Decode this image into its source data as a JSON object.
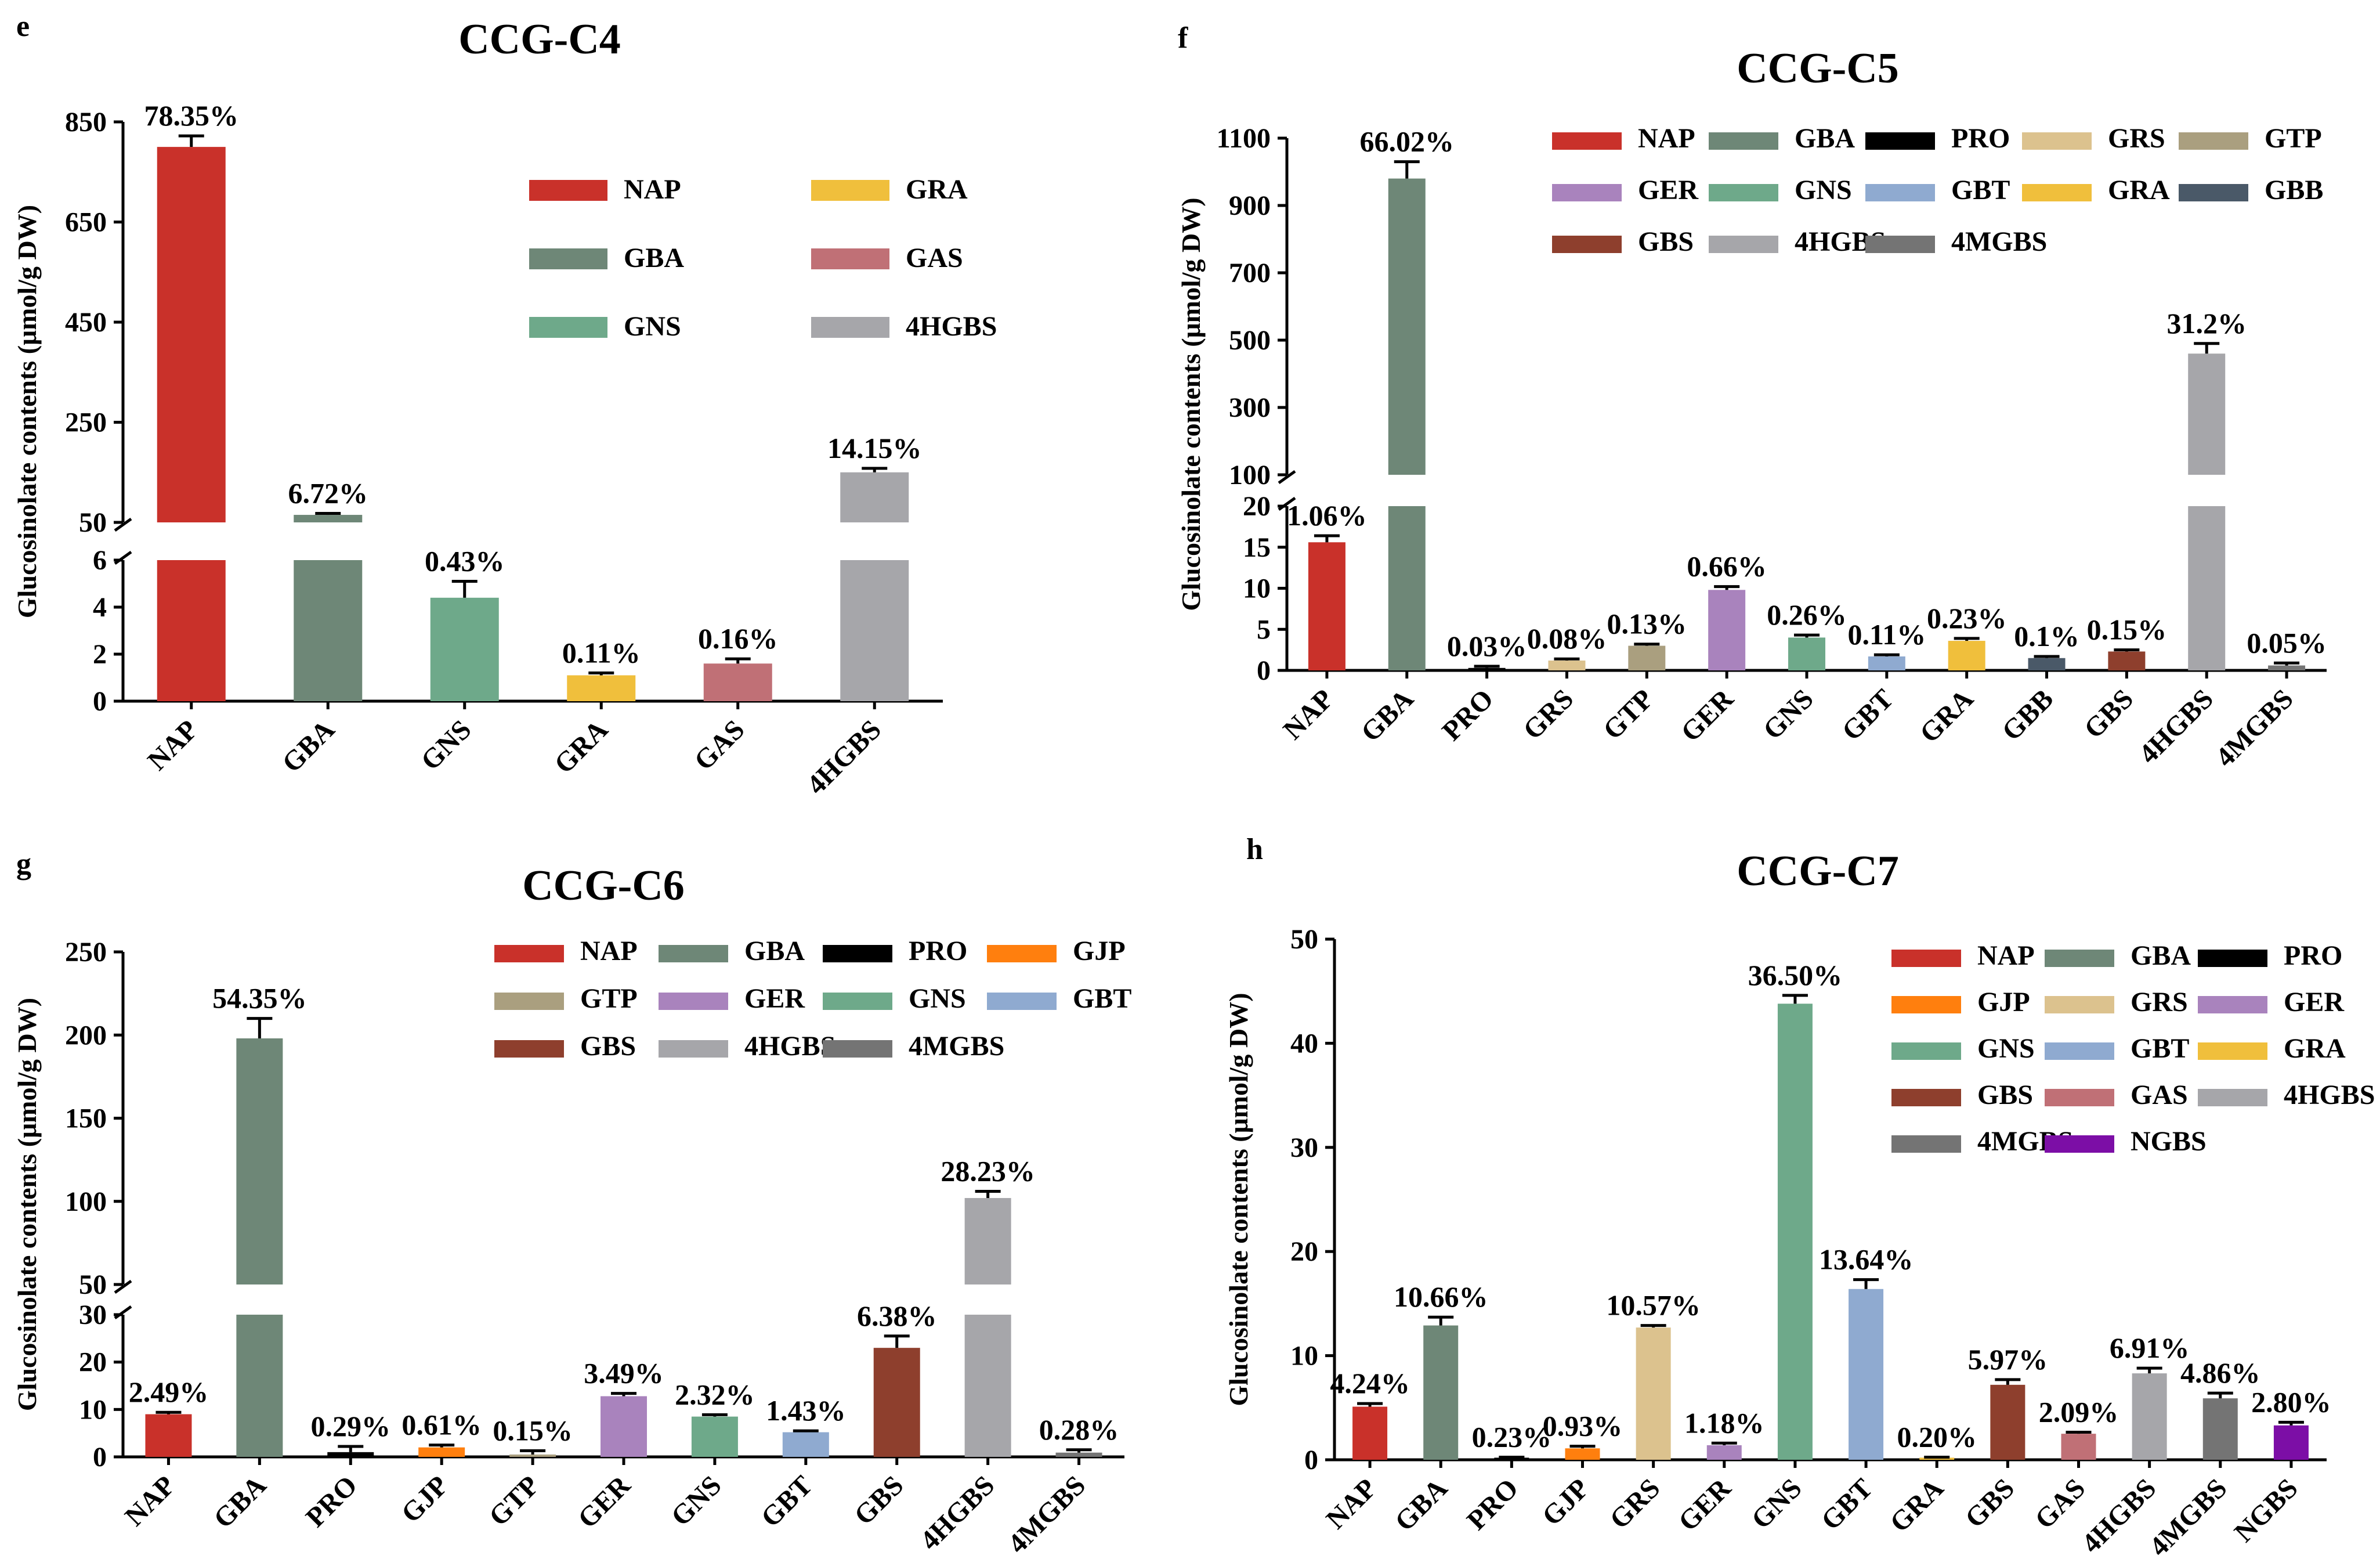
{
  "figure": {
    "colors": {
      "NAP": "#c9312a",
      "GBA": "#6e8777",
      "PRO": "#000000",
      "GJP": "#ff7f0e",
      "GRS": "#dcc28e",
      "GTP": "#aa9f7f",
      "GER": "#a983bd",
      "GNS": "#6ea98a",
      "GBT": "#8faad0",
      "GRA": "#f0bf3c",
      "GBB": "#4a5968",
      "GBS": "#8e3f2d",
      "GAS": "#c07076",
      "4HGBS": "#a6a6aa",
      "4MGBS": "#747474",
      "NGBS": "#7c0ea6"
    }
  },
  "chart_data": [
    {
      "panel_label": "e",
      "type": "bar",
      "title": "CCG-C4",
      "ylabel": "Glucosinolate contents (μmol/g DW)",
      "categories": [
        "NAP",
        "GBA",
        "GNS",
        "GRA",
        "GAS",
        "4HGBS"
      ],
      "values": [
        800,
        65,
        4.4,
        1.1,
        1.6,
        150
      ],
      "errors": [
        22,
        3,
        0.7,
        0.1,
        0.2,
        8
      ],
      "labels": [
        "78.35%",
        "6.72%",
        "0.43%",
        "0.11%",
        "0.16%",
        "14.15%"
      ],
      "y_axis_break": {
        "lower_range": [
          0,
          6
        ],
        "upper_range": [
          50,
          850
        ]
      },
      "yticks_lower": [
        "0",
        "2",
        "4",
        "6"
      ],
      "yticks_upper": [
        "50",
        "250",
        "450",
        "650",
        "850"
      ],
      "legend": [
        "NAP",
        "GRA",
        "GBA",
        "GAS",
        "GNS",
        "4HGBS"
      ],
      "legend_placement": "top-right"
    },
    {
      "panel_label": "f",
      "type": "bar",
      "title": "CCG-C5",
      "ylabel": "Glucosinolate contents (μmol/g DW)",
      "categories": [
        "NAP",
        "GBA",
        "PRO",
        "GRS",
        "GTP",
        "GER",
        "GNS",
        "GBT",
        "GRA",
        "GBB",
        "GBS",
        "4HGBS",
        "4MGBS"
      ],
      "values": [
        15.6,
        980,
        0.3,
        1.2,
        3.0,
        9.8,
        4.0,
        1.7,
        3.6,
        1.5,
        2.3,
        460,
        0.6
      ],
      "errors": [
        0.8,
        50,
        0.2,
        0.2,
        0.2,
        0.4,
        0.3,
        0.2,
        0.3,
        0.2,
        0.2,
        30,
        0.3
      ],
      "labels": [
        "1.06%",
        "66.02%",
        "0.03%",
        "0.08%",
        "0.13%",
        "0.66%",
        "0.26%",
        "0.11%",
        "0.23%",
        "0.1%",
        "0.15%",
        "31.2%",
        "0.05%"
      ],
      "y_axis_break": {
        "lower_range": [
          0,
          20
        ],
        "upper_range": [
          100,
          1100
        ]
      },
      "yticks_lower": [
        "0",
        "5",
        "10",
        "15",
        "20"
      ],
      "yticks_upper": [
        "100",
        "300",
        "500",
        "700",
        "900",
        "1100"
      ],
      "legend": [
        "NAP",
        "GBA",
        "PRO",
        "GRS",
        "GTP",
        "GER",
        "GNS",
        "GBT",
        "GRA",
        "GBB",
        "GBS",
        "4HGBS",
        "4MGBS"
      ],
      "legend_placement": "top-right"
    },
    {
      "panel_label": "g",
      "type": "bar",
      "title": "CCG-C6",
      "ylabel": "Glucosinolate contents (μmol/g DW)",
      "categories": [
        "NAP",
        "GBA",
        "PRO",
        "GJP",
        "GTP",
        "GER",
        "GNS",
        "GBT",
        "GBS",
        "4HGBS",
        "4MGBS"
      ],
      "values": [
        9,
        198,
        1.0,
        2.0,
        0.5,
        12.8,
        8.5,
        5.2,
        23,
        102,
        0.9
      ],
      "errors": [
        0.4,
        12,
        1.2,
        0.5,
        0.8,
        0.6,
        0.4,
        0.3,
        2.5,
        4,
        0.6
      ],
      "labels": [
        "2.49%",
        "54.35%",
        "0.29%",
        "0.61%",
        "0.15%",
        "3.49%",
        "2.32%",
        "1.43%",
        "6.38%",
        "28.23%",
        "0.28%"
      ],
      "y_axis_break": {
        "lower_range": [
          0,
          30
        ],
        "upper_range": [
          50,
          250
        ]
      },
      "yticks_lower": [
        "0",
        "10",
        "20",
        "30"
      ],
      "yticks_upper": [
        "50",
        "100",
        "150",
        "200",
        "250"
      ],
      "legend": [
        "NAP",
        "GBA",
        "PRO",
        "GJP",
        "GTP",
        "GER",
        "GNS",
        "GBT",
        "GBS",
        "4HGBS",
        "4MGBS"
      ],
      "legend_placement": "top-right"
    },
    {
      "panel_label": "h",
      "type": "bar",
      "title": "CCG-C7",
      "ylabel": "Glucosinolate contents (μmol/g DW)",
      "categories": [
        "NAP",
        "GBA",
        "PRO",
        "GJP",
        "GRS",
        "GER",
        "GNS",
        "GBT",
        "GRA",
        "GBS",
        "GAS",
        "4HGBS",
        "4MGBS",
        "NGBS"
      ],
      "values": [
        5.1,
        12.9,
        0.2,
        1.1,
        12.7,
        1.4,
        43.8,
        16.4,
        0.2,
        7.2,
        2.5,
        8.3,
        5.9,
        3.3
      ],
      "errors": [
        0.3,
        0.8,
        0.05,
        0.2,
        0.2,
        0.2,
        0.8,
        0.9,
        0.05,
        0.5,
        0.15,
        0.5,
        0.5,
        0.3
      ],
      "labels": [
        "4.24%",
        "10.66%",
        "0.23%",
        "0.93%",
        "10.57%",
        "1.18%",
        "36.50%",
        "13.64%",
        "0.20%",
        "5.97%",
        "2.09%",
        "6.91%",
        "4.86%",
        "2.80%"
      ],
      "ylim": [
        0,
        50
      ],
      "yticks": [
        "0",
        "10",
        "20",
        "30",
        "40",
        "50"
      ],
      "legend": [
        "NAP",
        "GBA",
        "PRO",
        "GJP",
        "GRS",
        "GER",
        "GNS",
        "GBT",
        "GRA",
        "GBS",
        "GAS",
        "4HGBS",
        "4MGBS",
        "NGBS"
      ],
      "legend_placement": "top-right"
    }
  ]
}
